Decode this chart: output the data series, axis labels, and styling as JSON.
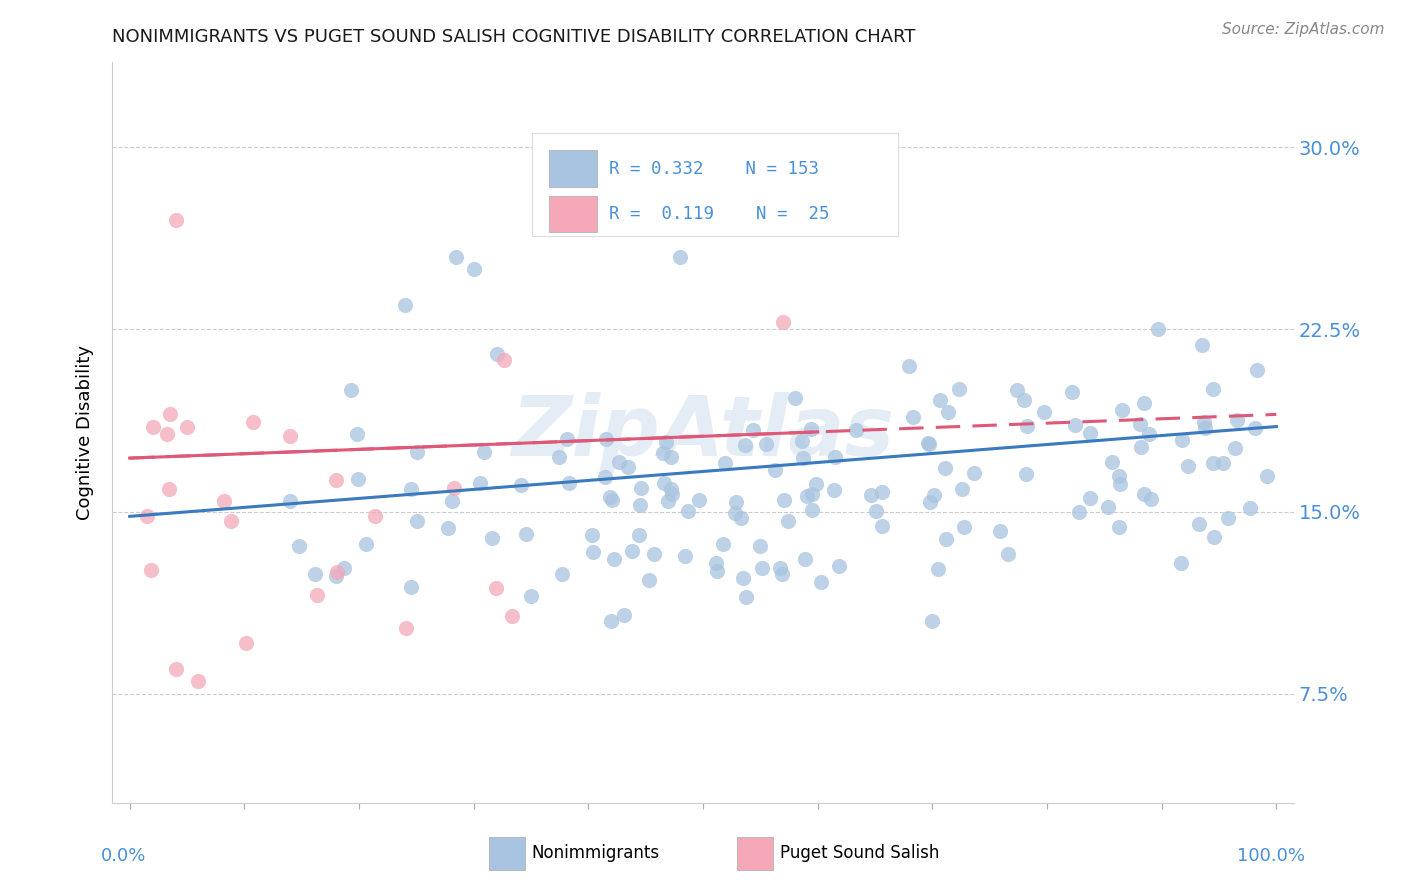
{
  "title": "NONIMMIGRANTS VS PUGET SOUND SALISH COGNITIVE DISABILITY CORRELATION CHART",
  "source": "Source: ZipAtlas.com",
  "ylabel": "Cognitive Disability",
  "watermark": "ZipAtlas",
  "blue_color": "#a8c4e0",
  "pink_color": "#f4a8b8",
  "blue_line_color": "#3a7abf",
  "pink_line_color": "#e05878",
  "r_blue": 0.332,
  "n_blue": 153,
  "r_pink": 0.119,
  "n_pink": 25,
  "ytick_vals": [
    0.075,
    0.15,
    0.225,
    0.3
  ],
  "ytick_labels": [
    "7.5%",
    "15.0%",
    "22.5%",
    "30.0%"
  ],
  "ylim_low": 0.03,
  "ylim_high": 0.335,
  "xlim_low": -0.015,
  "xlim_high": 1.015,
  "tick_color": "#4a90d9",
  "grid_color": "#cccccc",
  "legend_text_color": "#4a90d9",
  "title_fontsize": 13,
  "source_color": "#888888"
}
